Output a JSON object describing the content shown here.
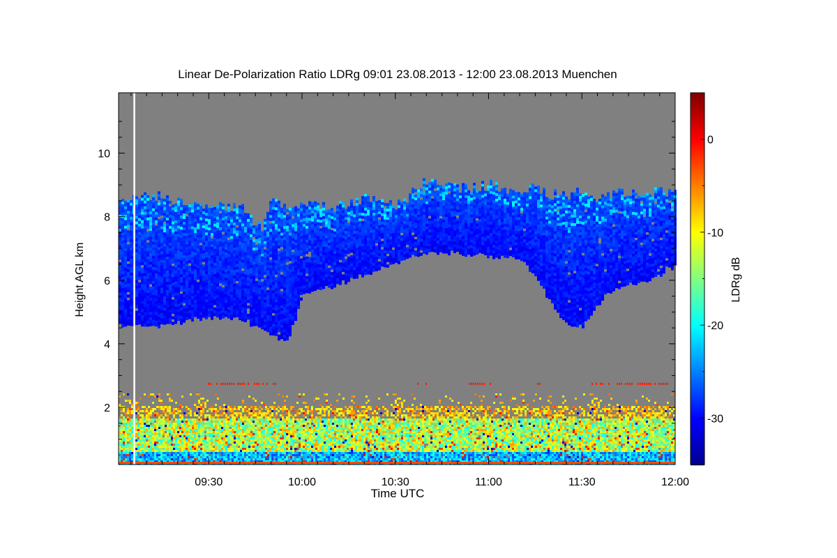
{
  "chart_data": {
    "type": "heatmap",
    "title": "Linear De-Polarization Ratio LDRg   09:01 23.08.2013 - 12:00 23.08.2013 Muenchen",
    "xlabel": "Time UTC",
    "ylabel": "Height AGL km",
    "colorbar_label": "LDRg dB",
    "x_range": [
      "09:01",
      "12:00"
    ],
    "x_ticks": [
      "09:30",
      "10:00",
      "10:30",
      "11:00",
      "11:30",
      "12:00"
    ],
    "y_range": [
      0.2,
      11.9
    ],
    "y_ticks": [
      2,
      4,
      6,
      8,
      10
    ],
    "colorbar_range": [
      -35,
      5
    ],
    "colorbar_ticks": [
      0,
      -10,
      -20,
      -30
    ],
    "colormap": [
      "#00008f",
      "#0000ff",
      "#0080ff",
      "#00ffff",
      "#80ff80",
      "#ffff00",
      "#ff8000",
      "#ff0000",
      "#800000"
    ],
    "no_data_color": "#808080",
    "missing_data_line_time": "09:06",
    "cirrus_layer": {
      "ldr_db_range": [
        -32,
        -20
      ],
      "time": [
        "09:01",
        "09:10",
        "09:20",
        "09:30",
        "09:40",
        "09:47",
        "09:50",
        "09:55",
        "10:00",
        "10:10",
        "10:20",
        "10:30",
        "10:40",
        "10:50",
        "11:00",
        "11:10",
        "11:15",
        "11:20",
        "11:25",
        "11:30",
        "11:35",
        "11:40",
        "11:50",
        "12:00"
      ],
      "base_km": [
        4.6,
        4.6,
        4.7,
        4.9,
        4.8,
        4.5,
        4.3,
        4.1,
        5.6,
        5.9,
        6.2,
        6.6,
        6.9,
        6.9,
        6.8,
        6.7,
        6.1,
        5.3,
        4.6,
        4.6,
        5.3,
        5.8,
        6.0,
        6.5
      ],
      "top_km": [
        8.5,
        8.7,
        8.5,
        8.4,
        8.3,
        7.6,
        8.5,
        8.4,
        8.4,
        8.3,
        8.6,
        8.3,
        9.2,
        8.9,
        9.0,
        8.8,
        8.9,
        8.7,
        8.7,
        8.8,
        8.5,
        8.7,
        8.8,
        8.8
      ]
    },
    "boundary_layer": {
      "top_km": 2.5,
      "ldr_db_range": [
        -25,
        -5
      ]
    },
    "noise_line_km": 2.75
  }
}
